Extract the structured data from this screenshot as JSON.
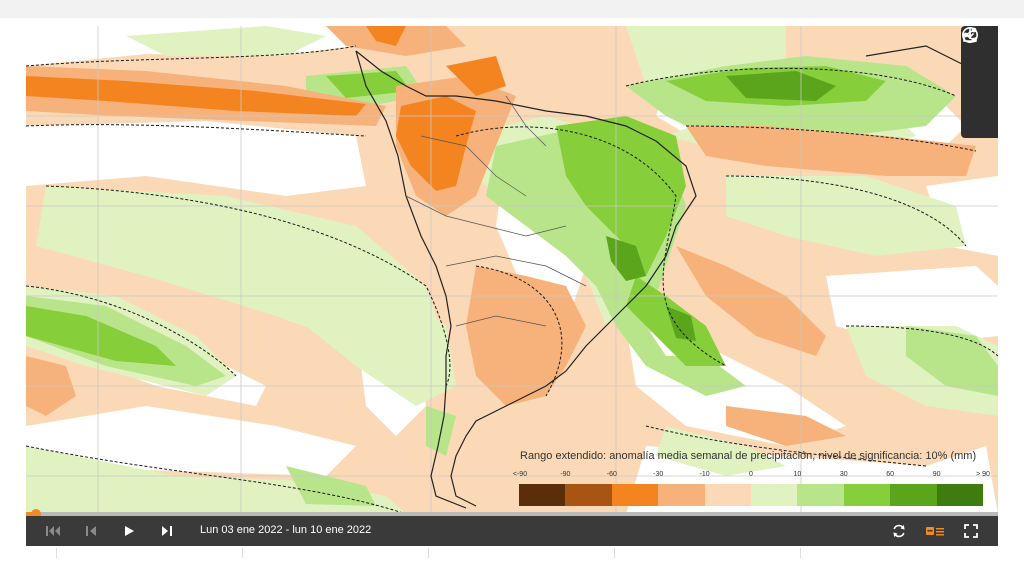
{
  "legend": {
    "title": "Rango extendido: anomalía media semanal de precipitación, nivel de significancia: 10% (mm)",
    "ticks": [
      "<-90",
      "-90",
      "-60",
      "-30",
      "-10",
      "0",
      "10",
      "30",
      "60",
      "90",
      "> 90"
    ],
    "colors": [
      "#5a2e0a",
      "#a85412",
      "#f48420",
      "#f6b27a",
      "#fbd9b6",
      "#dff2c0",
      "#b8e48a",
      "#86cf3a",
      "#5aa51c",
      "#3e7c10"
    ]
  },
  "player": {
    "date_range": "Lun 03 ene 2022 - lun 10 ene 2022",
    "progress": 0.01
  },
  "icons": {
    "info": "info-icon",
    "share": "share-icon",
    "download": "download-icon",
    "skip_start": "skip-to-start-icon",
    "step_back": "step-back-icon",
    "play": "play-icon",
    "step_forward": "step-forward-icon",
    "loop": "loop-icon",
    "legend_toggle": "legend-toggle-icon",
    "fullscreen": "fullscreen-icon"
  }
}
